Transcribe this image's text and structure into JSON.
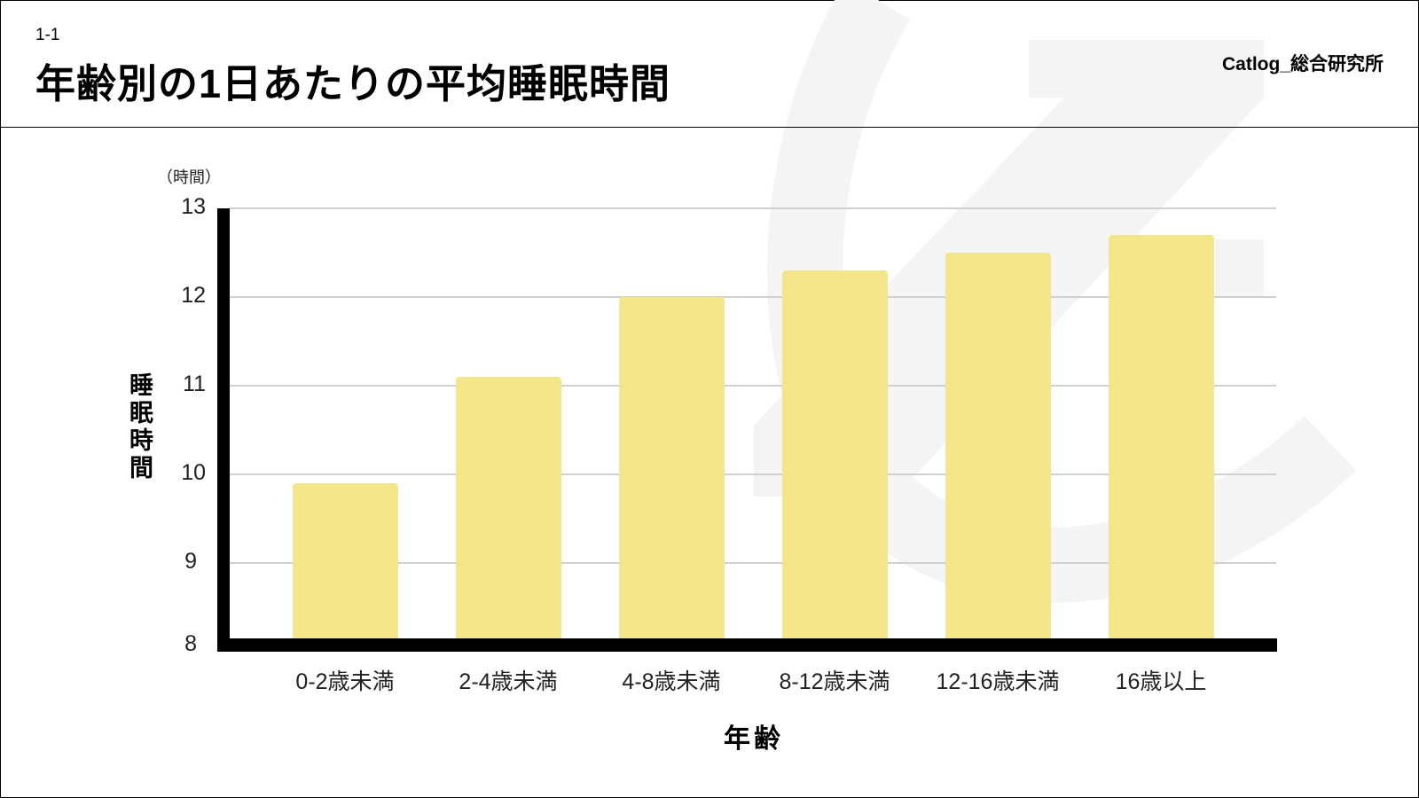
{
  "header": {
    "section_number": "1-1",
    "title": "年齢別の1日あたりの平均睡眠時間",
    "brand": "Catlog_総合研究所"
  },
  "colors": {
    "bar": "#f3e58a",
    "axis": "#000000",
    "grid": "#d0d0d0",
    "watermark": "#f4f4f4"
  },
  "chart_data": {
    "type": "bar",
    "title": "年齢別の1日あたりの平均睡眠時間",
    "xlabel": "年齢",
    "ylabel": "睡眠時間",
    "y_unit": "（時間）",
    "categories": [
      "0-2歳未満",
      "2-4歳未満",
      "4-8歳未満",
      "8-12歳未満",
      "12-16歳未満",
      "16歳以上"
    ],
    "values": [
      9.9,
      11.1,
      12.0,
      12.3,
      12.5,
      12.7
    ],
    "ylim": [
      8,
      13
    ],
    "yticks": [
      "13",
      "12",
      "11",
      "10",
      "9",
      "8"
    ],
    "grid": true,
    "legend": null
  }
}
